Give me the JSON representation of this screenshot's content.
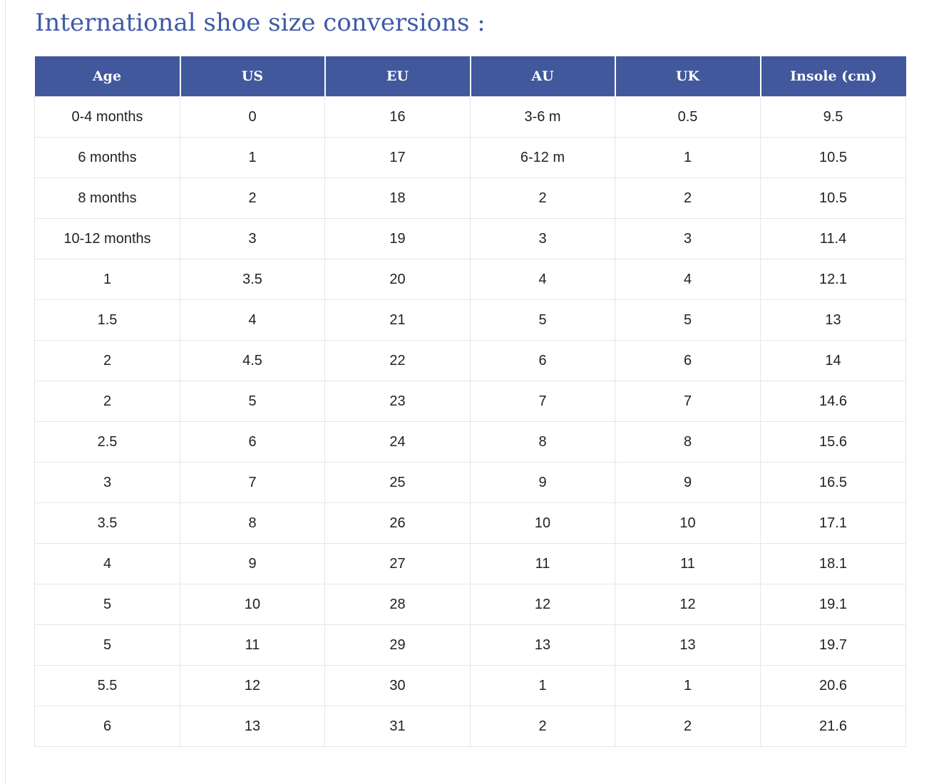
{
  "title": "International shoe size conversions :",
  "table": {
    "columns": [
      "Age",
      "US",
      "EU",
      "AU",
      "UK",
      "Insole (cm)"
    ],
    "rows": [
      [
        "0-4 months",
        "0",
        "16",
        "3-6 m",
        "0.5",
        "9.5"
      ],
      [
        "6 months",
        "1",
        "17",
        "6-12 m",
        "1",
        "10.5"
      ],
      [
        "8 months",
        "2",
        "18",
        "2",
        "2",
        "10.5"
      ],
      [
        "10-12 months",
        "3",
        "19",
        "3",
        "3",
        "11.4"
      ],
      [
        "1",
        "3.5",
        "20",
        "4",
        "4",
        "12.1"
      ],
      [
        "1.5",
        "4",
        "21",
        "5",
        "5",
        "13"
      ],
      [
        "2",
        "4.5",
        "22",
        "6",
        "6",
        "14"
      ],
      [
        "2",
        "5",
        "23",
        "7",
        "7",
        "14.6"
      ],
      [
        "2.5",
        "6",
        "24",
        "8",
        "8",
        "15.6"
      ],
      [
        "3",
        "7",
        "25",
        "9",
        "9",
        "16.5"
      ],
      [
        "3.5",
        "8",
        "26",
        "10",
        "10",
        "17.1"
      ],
      [
        "4",
        "9",
        "27",
        "11",
        "11",
        "18.1"
      ],
      [
        "5",
        "10",
        "28",
        "12",
        "12",
        "19.1"
      ],
      [
        "5",
        "11",
        "29",
        "13",
        "13",
        "19.7"
      ],
      [
        "5.5",
        "12",
        "30",
        "1",
        "1",
        "20.6"
      ],
      [
        "6",
        "13",
        "31",
        "2",
        "2",
        "21.6"
      ]
    ]
  },
  "colors": {
    "title": "#3f5aa6",
    "header_background": "#42589c",
    "header_text": "#ffffff",
    "cell_border": "#e6e6e6",
    "cell_text": "#222222"
  }
}
